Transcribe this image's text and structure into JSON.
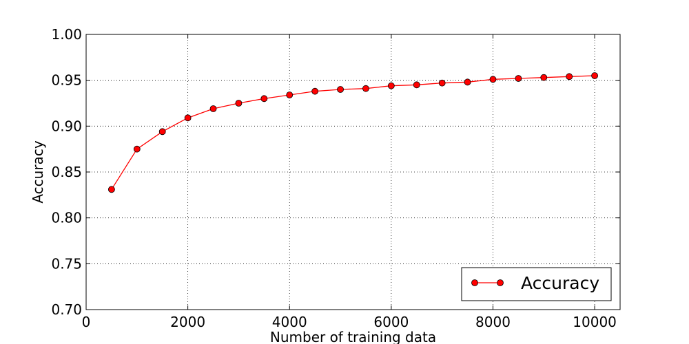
{
  "chart_data": {
    "type": "line",
    "xlabel": "Number of training data",
    "ylabel": "Accuracy",
    "xlim": [
      0,
      10500
    ],
    "ylim": [
      0.7,
      1.0
    ],
    "xticks": [
      0,
      2000,
      4000,
      6000,
      8000,
      10000
    ],
    "xtick_labels": [
      "0",
      "2000",
      "4000",
      "6000",
      "8000",
      "10000"
    ],
    "yticks": [
      0.7,
      0.75,
      0.8,
      0.85,
      0.9,
      0.95,
      1.0
    ],
    "ytick_labels": [
      "0.70",
      "0.75",
      "0.80",
      "0.85",
      "0.90",
      "0.95",
      "1.00"
    ],
    "grid": true,
    "legend_position": "bottom-right",
    "x": [
      500,
      1000,
      1500,
      2000,
      2500,
      3000,
      3500,
      4000,
      4500,
      5000,
      5500,
      6000,
      6500,
      7000,
      7500,
      8000,
      8500,
      9000,
      9500,
      10000
    ],
    "series": [
      {
        "name": "Accuracy",
        "color": "#ff0000",
        "values": [
          0.831,
          0.875,
          0.894,
          0.909,
          0.919,
          0.925,
          0.93,
          0.934,
          0.938,
          0.94,
          0.941,
          0.944,
          0.945,
          0.947,
          0.948,
          0.951,
          0.952,
          0.953,
          0.954,
          0.955
        ]
      }
    ]
  }
}
